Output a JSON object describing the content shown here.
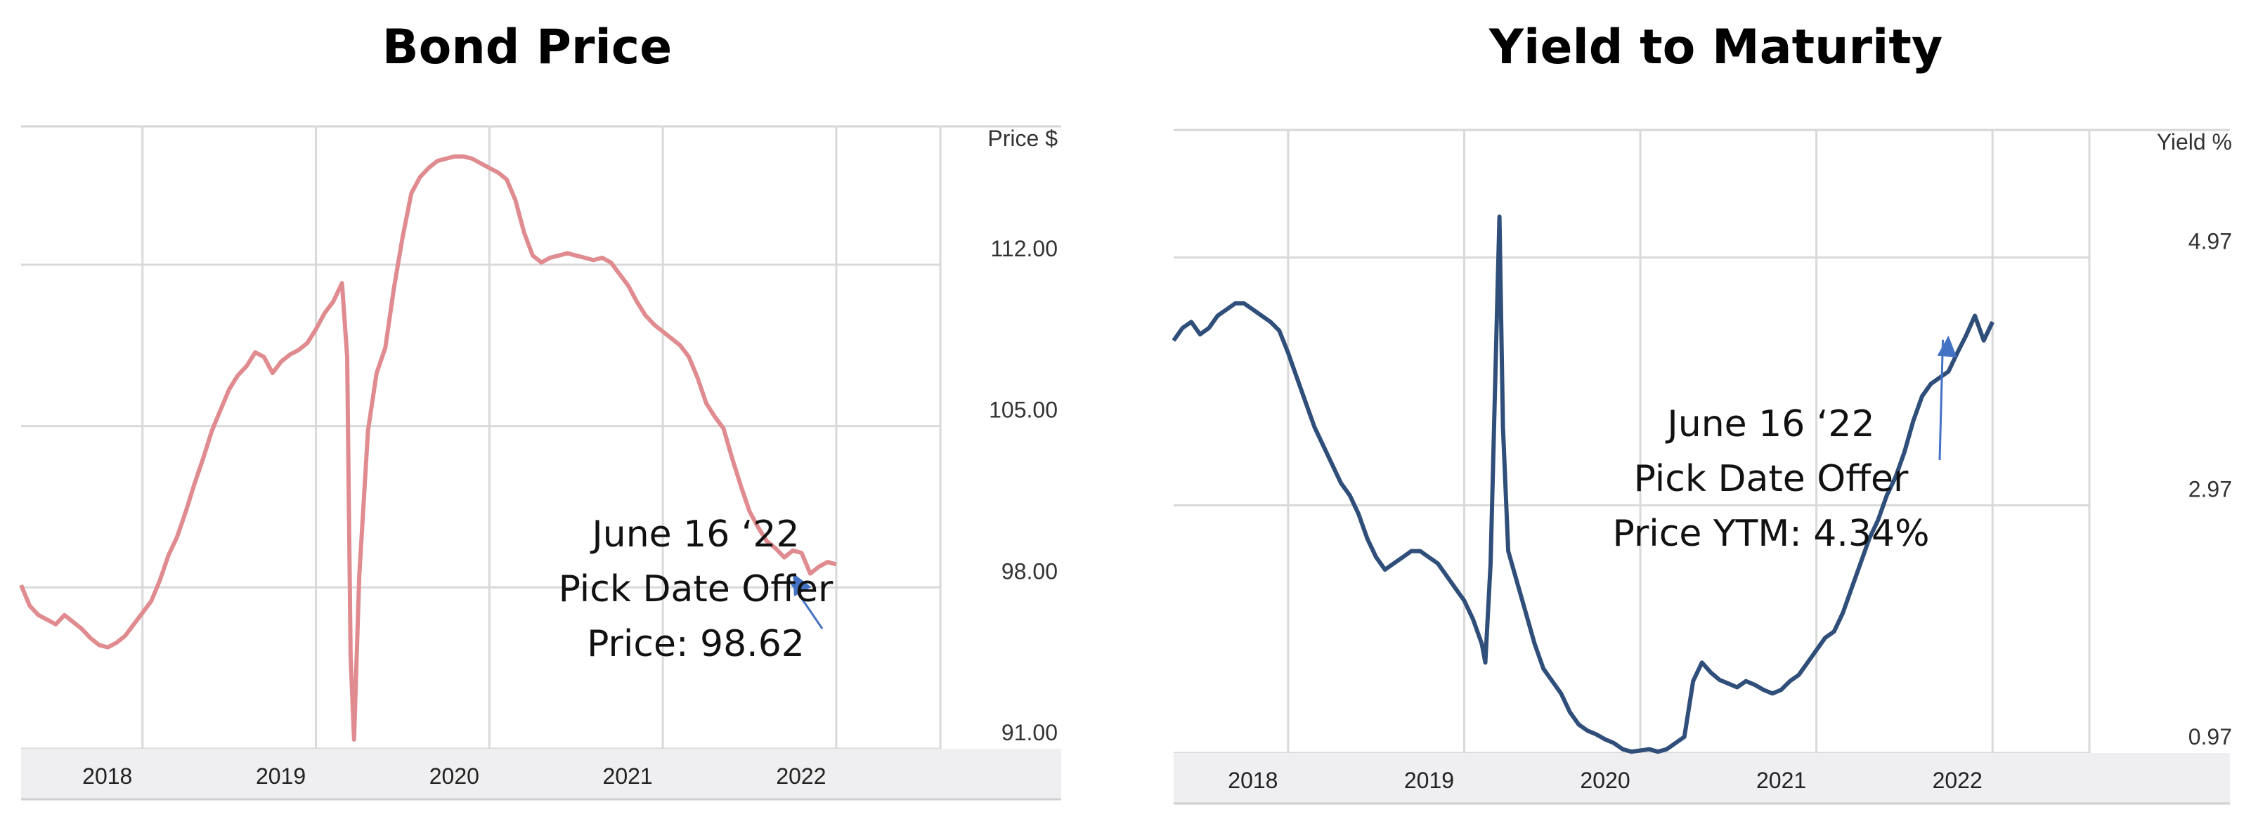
{
  "chart_data": [
    {
      "type": "line",
      "title": "Bond Price",
      "ylabel": "Price $",
      "y_ticks": [
        "112.00",
        "105.00",
        "98.00",
        "91.00"
      ],
      "y_tick_values": [
        112,
        105,
        98,
        91
      ],
      "x_ticks": [
        "2018",
        "2019",
        "2020",
        "2021",
        "2022"
      ],
      "x_tick_values": [
        2018.0,
        2019.0,
        2020.0,
        2021.0,
        2022.0
      ],
      "xlim": [
        2017.3,
        2022.6
      ],
      "ylim": [
        91.0,
        118.0
      ],
      "grid": true,
      "color": "#e08b8f",
      "x": [
        2017.3,
        2017.35,
        2017.4,
        2017.45,
        2017.5,
        2017.55,
        2017.6,
        2017.65,
        2017.7,
        2017.75,
        2017.8,
        2017.85,
        2017.9,
        2017.95,
        2018.0,
        2018.05,
        2018.1,
        2018.15,
        2018.2,
        2018.25,
        2018.3,
        2018.35,
        2018.4,
        2018.45,
        2018.5,
        2018.55,
        2018.6,
        2018.65,
        2018.7,
        2018.75,
        2018.8,
        2018.85,
        2018.9,
        2018.95,
        2019.0,
        2019.05,
        2019.1,
        2019.15,
        2019.18,
        2019.2,
        2019.22,
        2019.25,
        2019.3,
        2019.35,
        2019.4,
        2019.45,
        2019.5,
        2019.55,
        2019.6,
        2019.65,
        2019.7,
        2019.75,
        2019.8,
        2019.85,
        2019.9,
        2019.95,
        2020.0,
        2020.05,
        2020.1,
        2020.15,
        2020.2,
        2020.25,
        2020.3,
        2020.35,
        2020.4,
        2020.45,
        2020.5,
        2020.55,
        2020.6,
        2020.65,
        2020.7,
        2020.75,
        2020.8,
        2020.85,
        2020.9,
        2020.95,
        2021.0,
        2021.05,
        2021.1,
        2021.15,
        2021.2,
        2021.25,
        2021.3,
        2021.35,
        2021.4,
        2021.45,
        2021.5,
        2021.55,
        2021.6,
        2021.65,
        2021.7,
        2021.75,
        2021.8,
        2021.85,
        2021.9,
        2021.95,
        2022.0
      ],
      "y": [
        98.1,
        97.2,
        96.8,
        96.6,
        96.4,
        96.8,
        96.5,
        96.2,
        95.8,
        95.5,
        95.4,
        95.6,
        95.9,
        96.4,
        96.9,
        97.4,
        98.3,
        99.4,
        100.2,
        101.3,
        102.5,
        103.6,
        104.8,
        105.7,
        106.6,
        107.2,
        107.6,
        108.2,
        108.0,
        107.3,
        107.8,
        108.1,
        108.3,
        108.6,
        109.2,
        109.9,
        110.4,
        111.2,
        108.0,
        95.0,
        91.4,
        98.5,
        104.8,
        107.3,
        108.4,
        111.0,
        113.2,
        115.1,
        115.8,
        116.2,
        116.5,
        116.6,
        116.7,
        116.7,
        116.6,
        116.4,
        116.2,
        116.0,
        115.7,
        114.8,
        113.4,
        112.4,
        112.1,
        112.3,
        112.4,
        112.5,
        112.4,
        112.3,
        112.2,
        112.3,
        112.1,
        111.6,
        111.1,
        110.4,
        109.8,
        109.4,
        109.1,
        108.8,
        108.5,
        108.0,
        107.1,
        106.0,
        105.4,
        104.9,
        103.6,
        102.4,
        101.3,
        100.6,
        100.0,
        99.7,
        99.3,
        99.6,
        99.5,
        98.6,
        98.9,
        99.1,
        99.0
      ],
      "annotation": {
        "lines": [
          "June 16 ‘22",
          "Pick Date Offer",
          "Price: 98.62"
        ],
        "x": 2021.75,
        "y": 98.62
      }
    },
    {
      "type": "line",
      "title": "Yield to Maturity",
      "ylabel": "Yield %",
      "y_ticks": [
        "4.97",
        "2.97",
        "0.97"
      ],
      "y_tick_values": [
        4.97,
        2.97,
        0.97
      ],
      "x_ticks": [
        "2018",
        "2019",
        "2020",
        "2021",
        "2022"
      ],
      "x_tick_values": [
        2018.0,
        2019.0,
        2020.0,
        2021.0,
        2022.0
      ],
      "xlim": [
        2017.35,
        2022.55
      ],
      "ylim": [
        0.97,
        6.0
      ],
      "grid": true,
      "color": "#2f4f7a",
      "x": [
        2017.35,
        2017.4,
        2017.45,
        2017.5,
        2017.55,
        2017.6,
        2017.65,
        2017.7,
        2017.75,
        2017.8,
        2017.85,
        2017.9,
        2017.95,
        2018.0,
        2018.05,
        2018.1,
        2018.15,
        2018.2,
        2018.25,
        2018.3,
        2018.35,
        2018.4,
        2018.45,
        2018.5,
        2018.55,
        2018.6,
        2018.65,
        2018.7,
        2018.75,
        2018.8,
        2018.85,
        2018.9,
        2018.95,
        2019.0,
        2019.05,
        2019.1,
        2019.12,
        2019.15,
        2019.18,
        2019.2,
        2019.22,
        2019.25,
        2019.3,
        2019.35,
        2019.4,
        2019.45,
        2019.5,
        2019.55,
        2019.6,
        2019.65,
        2019.7,
        2019.75,
        2019.8,
        2019.85,
        2019.9,
        2019.95,
        2020.0,
        2020.05,
        2020.1,
        2020.15,
        2020.2,
        2020.25,
        2020.3,
        2020.35,
        2020.4,
        2020.45,
        2020.5,
        2020.55,
        2020.6,
        2020.65,
        2020.7,
        2020.75,
        2020.8,
        2020.85,
        2020.9,
        2020.95,
        2021.0,
        2021.05,
        2021.1,
        2021.15,
        2021.2,
        2021.25,
        2021.3,
        2021.35,
        2021.4,
        2021.45,
        2021.5,
        2021.55,
        2021.6,
        2021.65,
        2021.7,
        2021.75,
        2021.8,
        2021.85,
        2021.9,
        2021.95,
        2022.0
      ],
      "y": [
        4.3,
        4.4,
        4.45,
        4.35,
        4.4,
        4.5,
        4.55,
        4.6,
        4.6,
        4.55,
        4.5,
        4.45,
        4.38,
        4.2,
        4.0,
        3.8,
        3.6,
        3.45,
        3.3,
        3.15,
        3.05,
        2.9,
        2.7,
        2.55,
        2.45,
        2.5,
        2.55,
        2.6,
        2.6,
        2.55,
        2.5,
        2.4,
        2.3,
        2.2,
        2.05,
        1.85,
        1.7,
        2.5,
        4.2,
        5.3,
        3.6,
        2.6,
        2.35,
        2.1,
        1.85,
        1.65,
        1.55,
        1.45,
        1.3,
        1.2,
        1.15,
        1.12,
        1.08,
        1.05,
        1.0,
        0.98,
        0.99,
        1.0,
        0.98,
        1.0,
        1.05,
        1.1,
        1.55,
        1.7,
        1.62,
        1.56,
        1.53,
        1.5,
        1.55,
        1.52,
        1.48,
        1.45,
        1.48,
        1.55,
        1.6,
        1.7,
        1.8,
        1.9,
        1.95,
        2.1,
        2.3,
        2.5,
        2.7,
        2.85,
        3.05,
        3.2,
        3.4,
        3.65,
        3.85,
        3.95,
        4.0,
        4.05,
        4.2,
        4.34,
        4.5,
        4.3,
        4.45
      ],
      "annotation": {
        "lines": [
          "June 16 ‘22",
          "Pick Date Offer",
          "Price YTM: 4.34%"
        ],
        "x": 2021.75,
        "y": 4.34
      }
    }
  ]
}
